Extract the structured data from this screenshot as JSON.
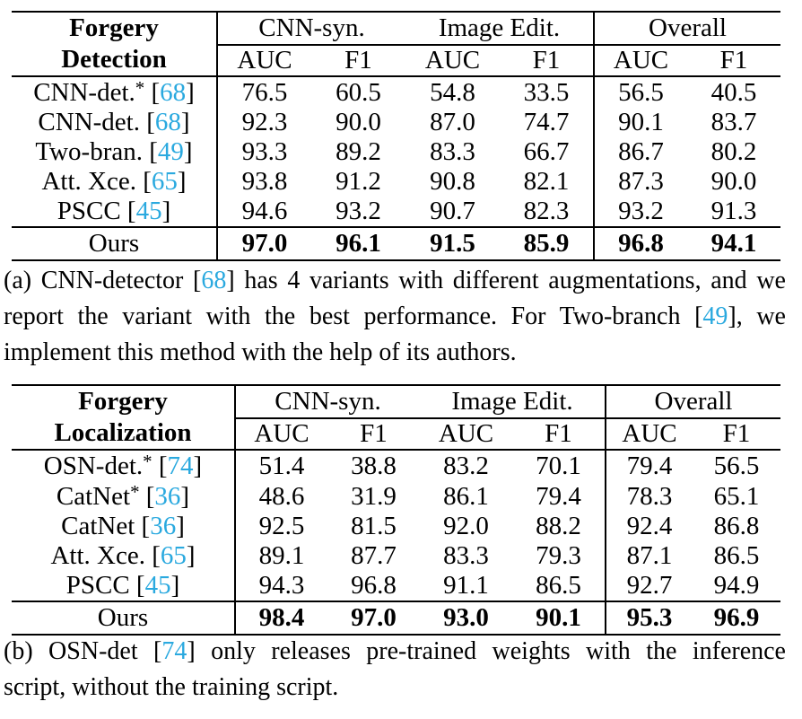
{
  "page": {
    "background": "#ffffff",
    "text_color": "#000000",
    "cite_color": "#2aa9df"
  },
  "tables": [
    {
      "name": "forgery-detection",
      "title_lines": [
        "Forgery",
        "Detection"
      ],
      "groups": [
        "CNN-syn.",
        "Image Edit.",
        "Overall"
      ],
      "metric_headers": [
        "AUC",
        "F1",
        "AUC",
        "F1",
        "AUC",
        "F1"
      ],
      "rows": [
        {
          "label": "CNN-det.",
          "sup": "*",
          "cite": "68",
          "values": [
            "76.5",
            "60.5",
            "54.8",
            "33.5",
            "56.5",
            "40.5"
          ]
        },
        {
          "label": "CNN-det.",
          "sup": "",
          "cite": "68",
          "values": [
            "92.3",
            "90.0",
            "87.0",
            "74.7",
            "90.1",
            "83.7"
          ]
        },
        {
          "label": "Two-bran.",
          "sup": "",
          "cite": "49",
          "values": [
            "93.3",
            "89.2",
            "83.3",
            "66.7",
            "86.7",
            "80.2"
          ]
        },
        {
          "label": "Att. Xce.",
          "sup": "",
          "cite": "65",
          "values": [
            "93.8",
            "91.2",
            "90.8",
            "82.1",
            "87.3",
            "90.0"
          ]
        },
        {
          "label": "PSCC",
          "sup": "",
          "cite": "45",
          "values": [
            "94.6",
            "93.2",
            "90.7",
            "82.3",
            "93.2",
            "91.3"
          ]
        }
      ],
      "ours": {
        "label": "Ours",
        "values": [
          "97.0",
          "96.1",
          "91.5",
          "85.9",
          "96.8",
          "94.1"
        ]
      }
    },
    {
      "name": "forgery-localization",
      "title_lines": [
        "Forgery",
        "Localization"
      ],
      "groups": [
        "CNN-syn.",
        "Image Edit.",
        "Overall"
      ],
      "metric_headers": [
        "AUC",
        "F1",
        "AUC",
        "F1",
        "AUC",
        "F1"
      ],
      "rows": [
        {
          "label": "OSN-det.",
          "sup": "*",
          "cite": "74",
          "values": [
            "51.4",
            "38.8",
            "83.2",
            "70.1",
            "79.4",
            "56.5"
          ]
        },
        {
          "label": "CatNet",
          "sup": "*",
          "cite": "36",
          "values": [
            "48.6",
            "31.9",
            "86.1",
            "79.4",
            "78.3",
            "65.1"
          ]
        },
        {
          "label": "CatNet",
          "sup": "",
          "cite": "36",
          "values": [
            "92.5",
            "81.5",
            "92.0",
            "88.2",
            "92.4",
            "86.8"
          ]
        },
        {
          "label": "Att. Xce.",
          "sup": "",
          "cite": "65",
          "values": [
            "89.1",
            "87.7",
            "83.3",
            "79.3",
            "87.1",
            "86.5"
          ]
        },
        {
          "label": "PSCC",
          "sup": "",
          "cite": "45",
          "values": [
            "94.3",
            "96.8",
            "91.1",
            "86.5",
            "92.7",
            "94.9"
          ]
        }
      ],
      "ours": {
        "label": "Ours",
        "values": [
          "98.4",
          "97.0",
          "93.0",
          "90.1",
          "95.3",
          "96.9"
        ]
      }
    }
  ],
  "captions": [
    {
      "name": "caption-a",
      "lines": [
        {
          "justify": true,
          "segments": [
            {
              "text": "(a) CNN-detector ["
            },
            {
              "cite": "68"
            },
            {
              "text": "] has 4 variants with different augmentations, and we"
            }
          ]
        },
        {
          "justify": true,
          "segments": [
            {
              "text": "report the variant with the best performance.  For Two-branch ["
            },
            {
              "cite": "49"
            },
            {
              "text": "], we"
            }
          ]
        },
        {
          "justify": false,
          "segments": [
            {
              "text": "implement this method with the help of its authors."
            }
          ]
        }
      ]
    },
    {
      "name": "caption-b",
      "lines": [
        {
          "justify": true,
          "segments": [
            {
              "text": "(b) OSN-det ["
            },
            {
              "cite": "74"
            },
            {
              "text": "] only releases pre-trained weights with the inference"
            }
          ]
        },
        {
          "justify": false,
          "segments": [
            {
              "text": "script, without the training script."
            }
          ]
        }
      ]
    }
  ]
}
